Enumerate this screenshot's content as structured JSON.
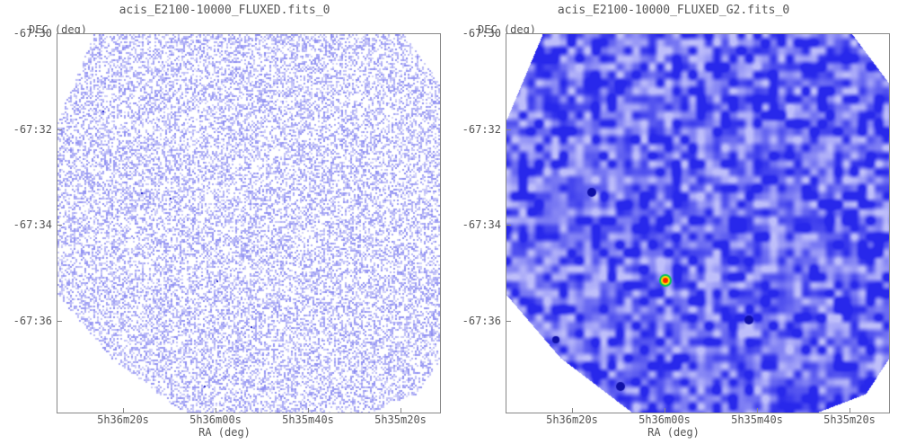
{
  "panels": [
    {
      "title": "acis_E2100-10000_FLUXED.fits_0",
      "ylabel": "DEC (deg)",
      "xlabel": "RA (deg)",
      "yticks": [
        "-67:30",
        "-67:32",
        "-67:34",
        "-67:36"
      ],
      "xticks": [
        "5h36m20s",
        "5h36m00s",
        "5h35m40s",
        "5h35m20s"
      ],
      "image_style": "sparse-pixels"
    },
    {
      "title": "acis_E2100-10000_FLUXED_G2.fits_0",
      "ylabel": "DEC (deg)",
      "xlabel": "RA (deg)",
      "yticks": [
        "-67:30",
        "-67:32",
        "-67:34",
        "-67:36"
      ],
      "xticks": [
        "5h36m20s",
        "5h36m00s",
        "5h35m40s",
        "5h35m20s"
      ],
      "image_style": "smoothed"
    }
  ],
  "colors": {
    "pixel": "#6b6bff",
    "smooth_base": "#3a3af0",
    "smooth_light": "#c8c8ff",
    "hot_core": "#ff2200",
    "hot_ring": "#ffee00",
    "hot_halo": "#00cc44"
  }
}
